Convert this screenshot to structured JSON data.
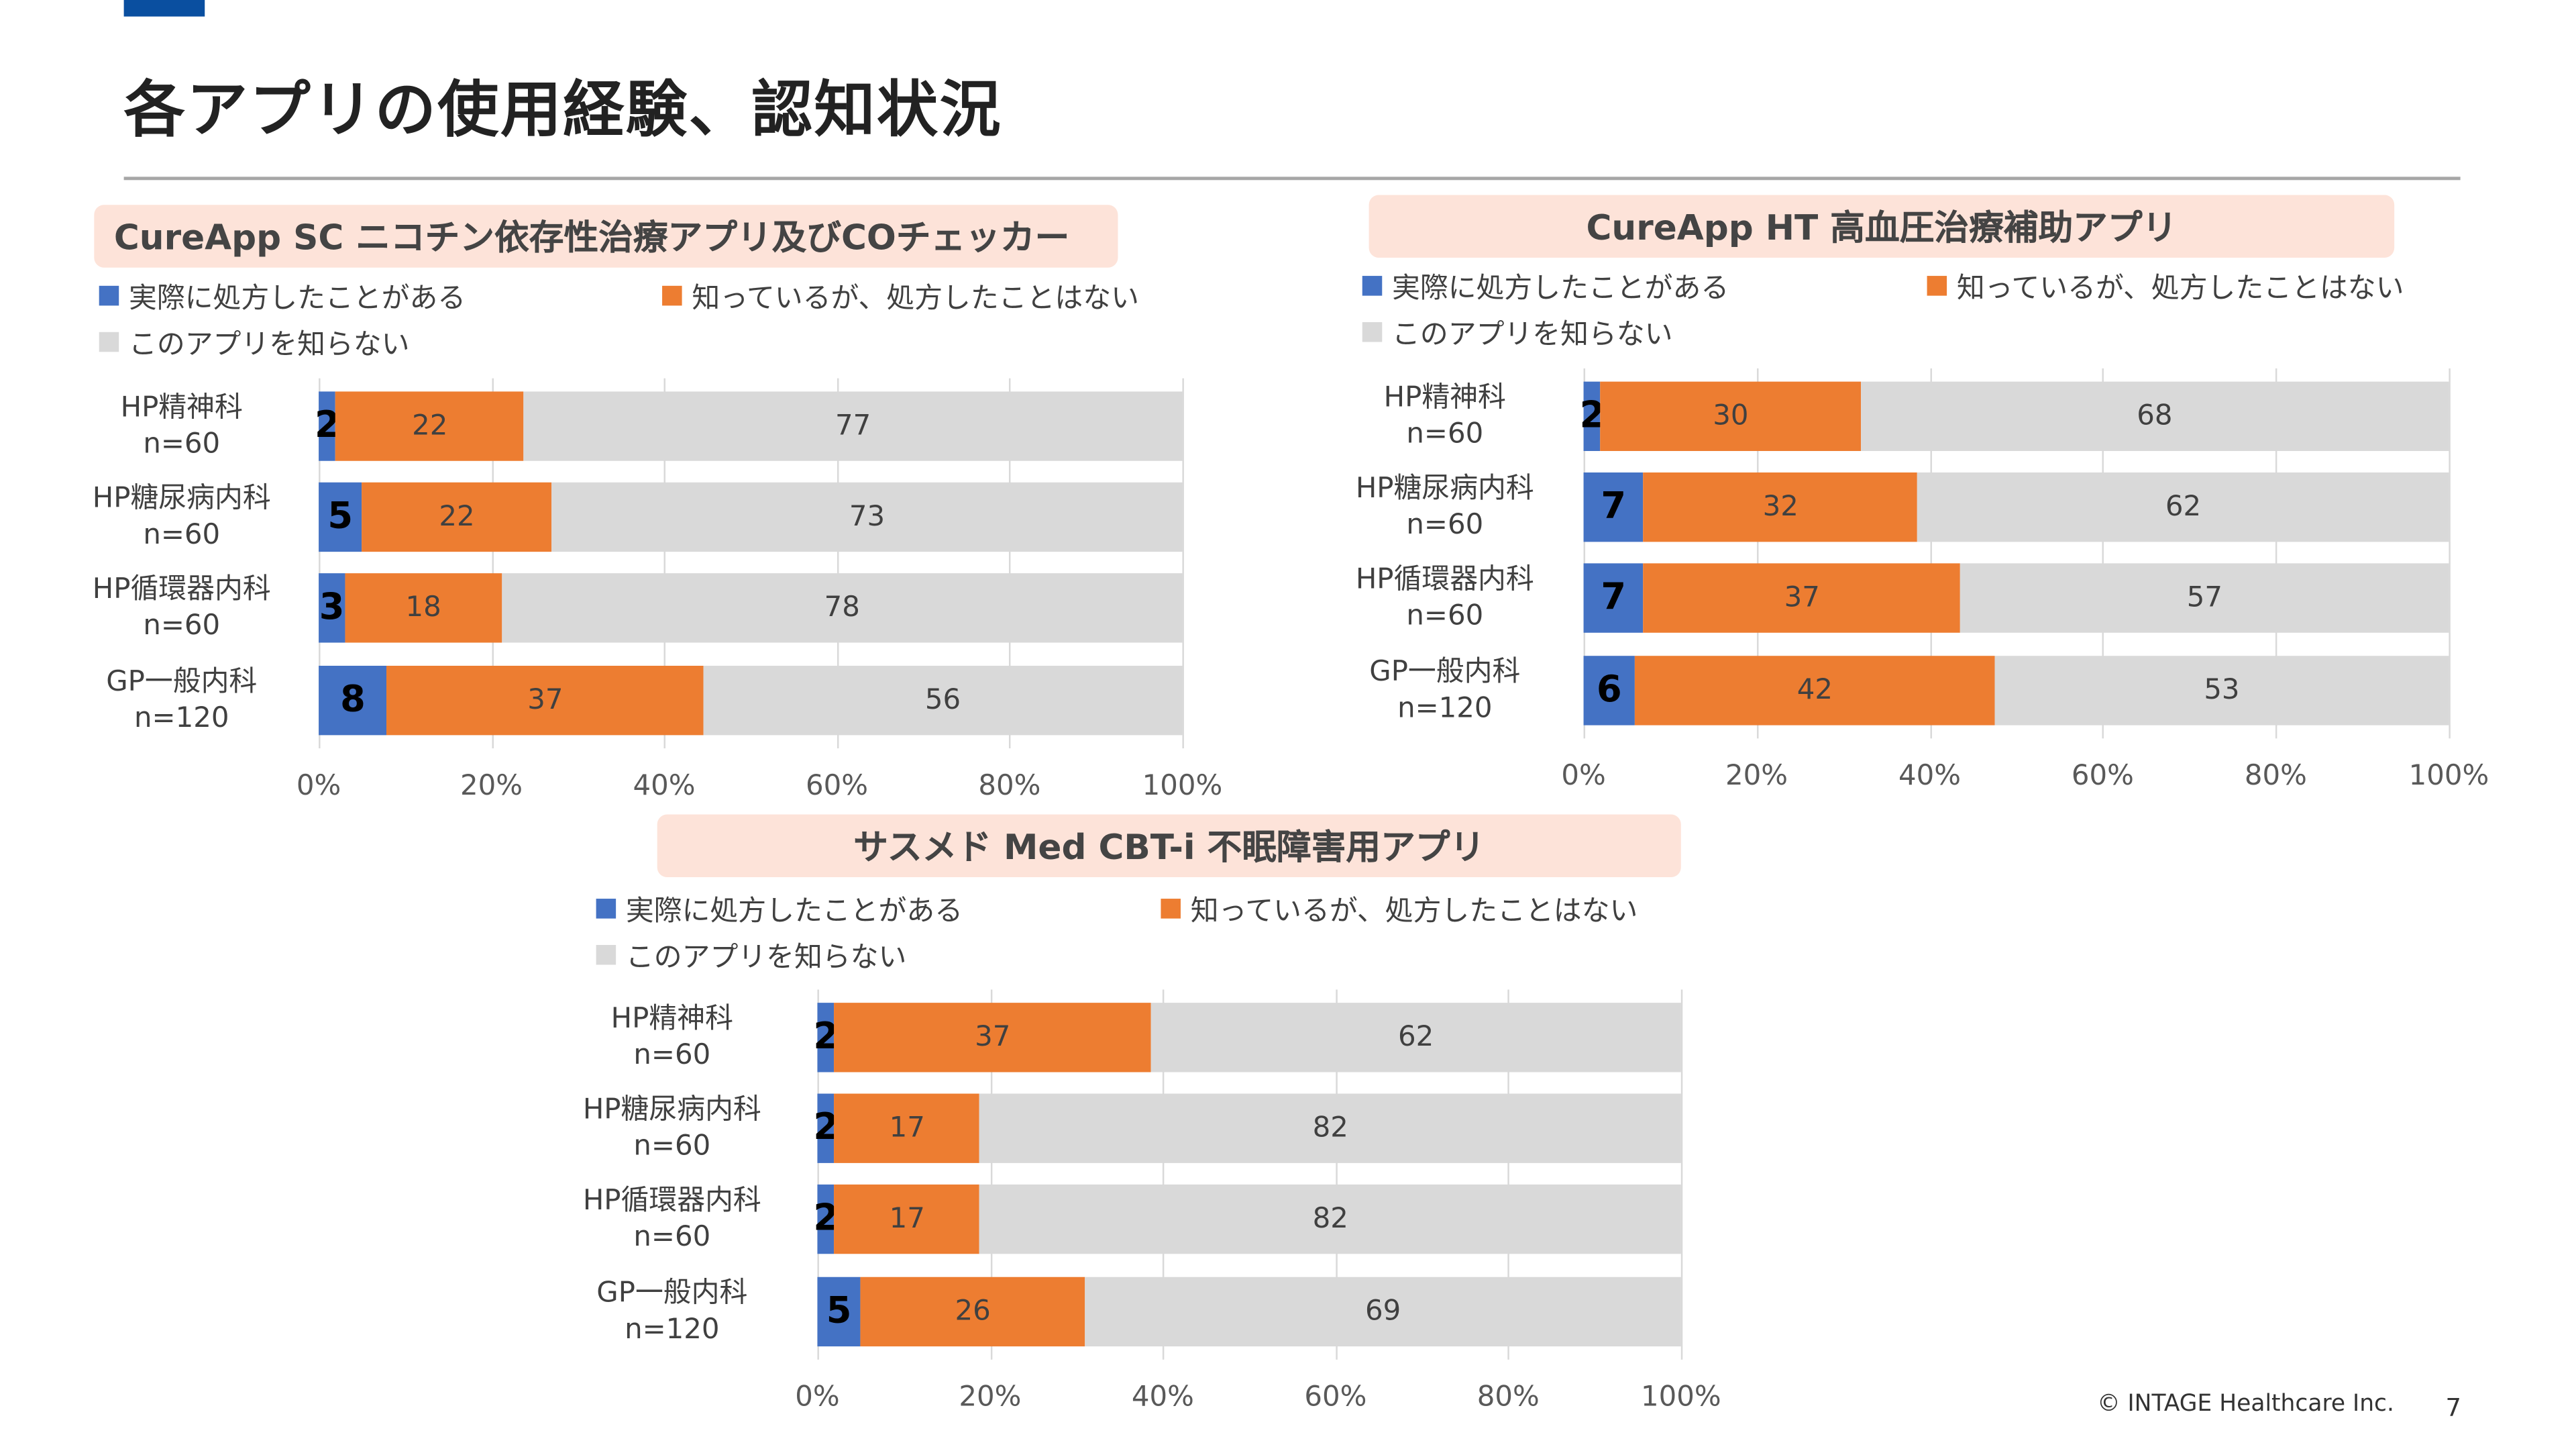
{
  "page_title": "各アプリの使用経験、認知状況",
  "footer": "© INTAGE Healthcare Inc.",
  "page_number": "7",
  "colors": {
    "prescribed": "#4472c4",
    "known_not_prescribed": "#ed7d31",
    "unknown": "#d9d9d9",
    "title_bg": "#fde3d9",
    "accent": "#0a4fa0"
  },
  "chart_data": [
    {
      "type": "bar",
      "orientation": "horizontal-stacked-100",
      "title": "CureApp SC ニコチン依存性治療アプリ及びCOチェッカー",
      "categories": [
        "HP精神科\nn=60",
        "HP糖尿病内科\nn=60",
        "HP循環器内科\nn=60",
        "GP一般内科\nn=120"
      ],
      "series": [
        {
          "name": "実際に処方したことがある",
          "values": [
            2,
            5,
            3,
            8
          ]
        },
        {
          "name": "知っているが、処方したことはない",
          "values": [
            22,
            22,
            18,
            37
          ]
        },
        {
          "name": "このアプリを知らない",
          "values": [
            77,
            73,
            78,
            56
          ]
        }
      ],
      "xticks": [
        "0%",
        "20%",
        "40%",
        "60%",
        "80%",
        "100%"
      ],
      "xlim": [
        0,
        100
      ],
      "grid": true,
      "legend": "top"
    },
    {
      "type": "bar",
      "orientation": "horizontal-stacked-100",
      "title": "CureApp HT 高血圧治療補助アプリ",
      "categories": [
        "HP精神科\nn=60",
        "HP糖尿病内科\nn=60",
        "HP循環器内科\nn=60",
        "GP一般内科\nn=120"
      ],
      "series": [
        {
          "name": "実際に処方したことがある",
          "values": [
            2,
            7,
            7,
            6
          ]
        },
        {
          "name": "知っているが、処方したことはない",
          "values": [
            30,
            32,
            37,
            42
          ]
        },
        {
          "name": "このアプリを知らない",
          "values": [
            68,
            62,
            57,
            53
          ]
        }
      ],
      "xticks": [
        "0%",
        "20%",
        "40%",
        "60%",
        "80%",
        "100%"
      ],
      "xlim": [
        0,
        100
      ],
      "grid": true,
      "legend": "top"
    },
    {
      "type": "bar",
      "orientation": "horizontal-stacked-100",
      "title": "サスメド Med CBT-i 不眠障害用アプリ",
      "categories": [
        "HP精神科\nn=60",
        "HP糖尿病内科\nn=60",
        "HP循環器内科\nn=60",
        "GP一般内科\nn=120"
      ],
      "series": [
        {
          "name": "実際に処方したことがある",
          "values": [
            2,
            2,
            2,
            5
          ]
        },
        {
          "name": "知っているが、処方したことはない",
          "values": [
            37,
            17,
            17,
            26
          ]
        },
        {
          "name": "このアプリを知らない",
          "values": [
            62,
            82,
            82,
            69
          ]
        }
      ],
      "xticks": [
        "0%",
        "20%",
        "40%",
        "60%",
        "80%",
        "100%"
      ],
      "xlim": [
        0,
        100
      ],
      "grid": true,
      "legend": "top"
    }
  ]
}
